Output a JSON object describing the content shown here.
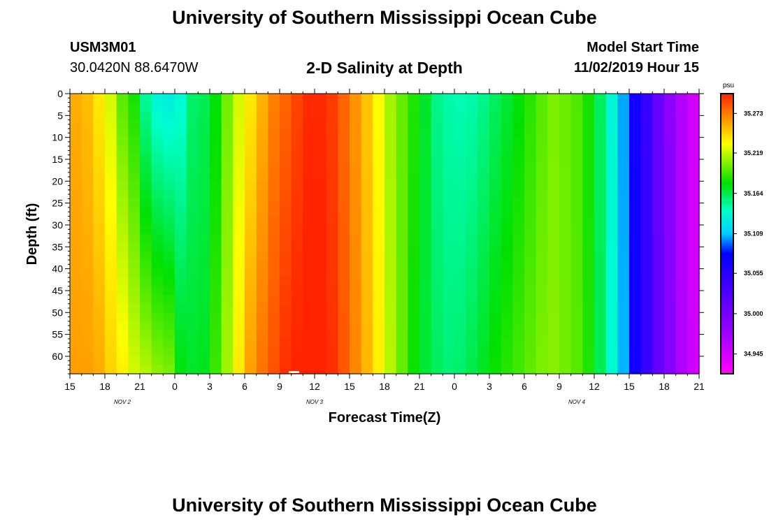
{
  "header": {
    "title": "University of Southern Mississippi Ocean Cube",
    "station_id": "USM3M01",
    "coordinates": "30.0420N 88.6470W",
    "plot_title": "2-D Salinity at Depth",
    "model_start_label": "Model Start Time",
    "model_start_value": "11/02/2019 Hour 15"
  },
  "footer": {
    "title": "University of Southern Mississippi Ocean Cube"
  },
  "colors": {
    "background": "#ffffff",
    "axis": "#000000"
  },
  "chart_data": {
    "type": "heatmap",
    "variable": "salinity",
    "title": "2-D Salinity at Depth",
    "xlabel": "Forecast Time(Z)",
    "ylabel": "Depth (ft)",
    "units": "psu",
    "x_ticks": [
      "15",
      "18",
      "21",
      "0",
      "3",
      "6",
      "9",
      "12",
      "15",
      "18",
      "21",
      "0",
      "3",
      "6",
      "9",
      "12",
      "15",
      "18",
      "21"
    ],
    "x_tick_hours": [
      0,
      3,
      6,
      9,
      12,
      15,
      18,
      21,
      24,
      27,
      30,
      33,
      36,
      39,
      42,
      45,
      48,
      51,
      54
    ],
    "x_range_hours": [
      0,
      54
    ],
    "day_labels": [
      {
        "label": "NOV 2",
        "hour": 4.5
      },
      {
        "label": "NOV 3",
        "hour": 21
      },
      {
        "label": "NOV 4",
        "hour": 43.5
      }
    ],
    "y_ticks": [
      0,
      5,
      10,
      15,
      20,
      25,
      30,
      35,
      40,
      45,
      50,
      55,
      60
    ],
    "y_range_ft": [
      0,
      64
    ],
    "color_scale": {
      "label": "psu",
      "min": 34.918,
      "max": 35.3,
      "tick_values": [
        "35.273",
        "35.219",
        "35.164",
        "35.109",
        "35.055",
        "35.000",
        "34.945"
      ],
      "colors": [
        "#ff00ff",
        "#8800ff",
        "#0000ff",
        "#00ccff",
        "#00ffcc",
        "#00e000",
        "#ffff00",
        "#ff8800",
        "#ff2200"
      ]
    },
    "surface_profile_hours": [
      0,
      1,
      2,
      3,
      4,
      5,
      6,
      7,
      8,
      9,
      10,
      11,
      12,
      13,
      14,
      15,
      16,
      17,
      18,
      19,
      20,
      21,
      22,
      23,
      24,
      25,
      26,
      27,
      28,
      29,
      30,
      31,
      32,
      33,
      34,
      35,
      36,
      37,
      38,
      39,
      40,
      41,
      42,
      43,
      44,
      45,
      46,
      47,
      48,
      49,
      50,
      51,
      52,
      53,
      54
    ],
    "surface_profile_psu": [
      35.258,
      35.252,
      35.238,
      35.222,
      35.196,
      35.182,
      35.148,
      35.132,
      35.128,
      35.136,
      35.158,
      35.162,
      35.176,
      35.202,
      35.222,
      35.238,
      35.256,
      35.272,
      35.28,
      35.29,
      35.298,
      35.298,
      35.292,
      35.28,
      35.266,
      35.25,
      35.232,
      35.212,
      35.198,
      35.184,
      35.17,
      35.152,
      35.146,
      35.144,
      35.146,
      35.152,
      35.16,
      35.168,
      35.176,
      35.186,
      35.196,
      35.204,
      35.2,
      35.194,
      35.182,
      35.16,
      35.134,
      35.104,
      35.07,
      35.042,
      35.01,
      34.985,
      34.962,
      34.945,
      34.93
    ],
    "bottom_profile_psu": [
      35.262,
      35.262,
      35.258,
      35.246,
      35.236,
      35.222,
      35.216,
      35.208,
      35.204,
      35.176,
      35.17,
      35.172,
      35.19,
      35.212,
      35.238,
      35.262,
      35.276,
      35.286,
      35.296,
      35.3,
      35.302,
      35.302,
      35.296,
      35.284,
      35.27,
      35.254,
      35.236,
      35.216,
      35.198,
      35.18,
      35.168,
      35.16,
      35.156,
      35.158,
      35.164,
      35.172,
      35.18,
      35.186,
      35.192,
      35.198,
      35.204,
      35.206,
      35.202,
      35.196,
      35.184,
      35.162,
      35.136,
      35.106,
      35.072,
      35.044,
      35.012,
      34.987,
      34.964,
      34.947,
      34.932
    ]
  }
}
